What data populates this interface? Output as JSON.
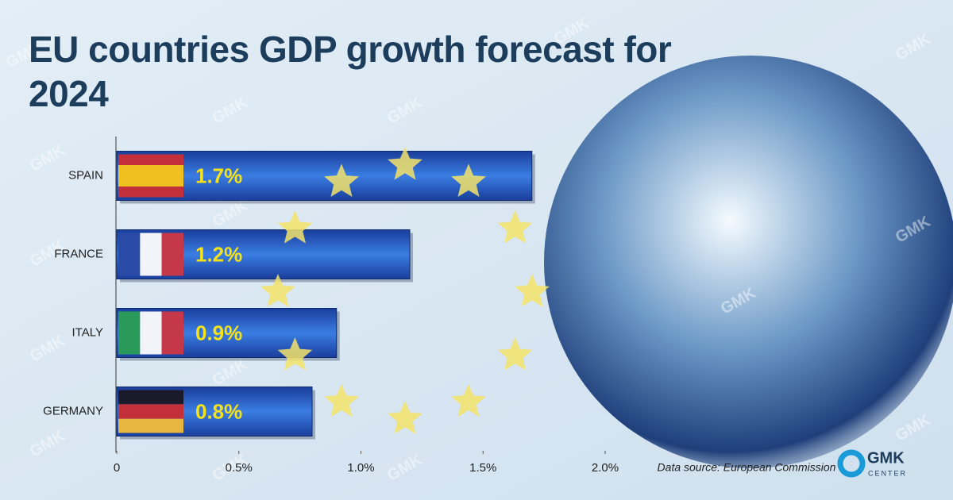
{
  "chart_data": {
    "type": "bar",
    "orientation": "horizontal",
    "title": "EU countries GDP growth forecast for 2024",
    "categories": [
      "SPAIN",
      "FRANCE",
      "ITALY",
      "GERMANY"
    ],
    "values": [
      1.7,
      1.2,
      0.9,
      0.8
    ],
    "value_labels": [
      "1.7%",
      "1.2%",
      "0.9%",
      "0.8%"
    ],
    "color": "#2a5fc8",
    "xlim": [
      0,
      2.0
    ],
    "xticks": [
      0,
      {
        "value": 0.5,
        "label": "0.5%"
      },
      {
        "value": 1.0,
        "label": "1.0%"
      },
      {
        "value": 1.5,
        "label": "1.5%"
      },
      {
        "value": 2.0,
        "label": "2.0%"
      }
    ],
    "source": "Data source: European Commission",
    "logo": {
      "name": "GMK",
      "subtitle": "CENTER"
    }
  }
}
